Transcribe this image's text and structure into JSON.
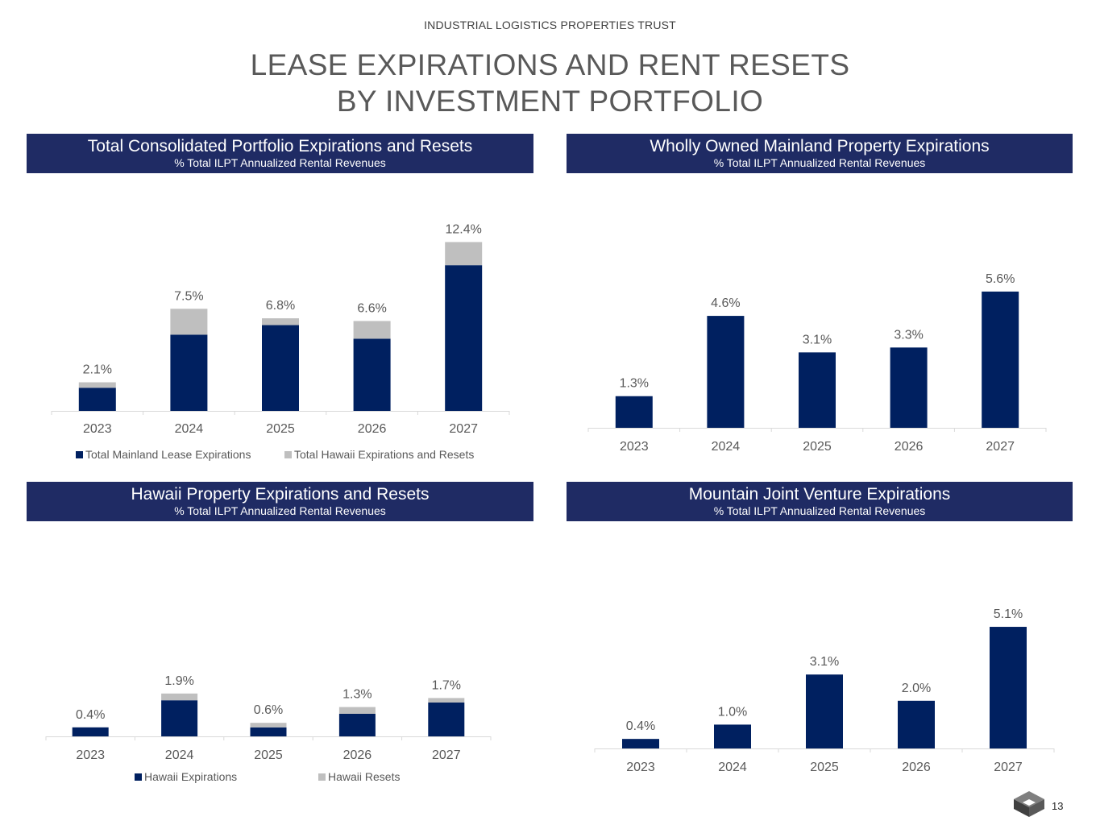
{
  "company": "INDUSTRIAL LOGISTICS PROPERTIES TRUST",
  "title_line1": "LEASE EXPIRATIONS AND RENT RESETS",
  "title_line2": "BY INVESTMENT PORTFOLIO",
  "page_number": "13",
  "colors": {
    "navy": "#002060",
    "gray": "#bfbfbf",
    "header": "#1f2b64"
  },
  "chart_data": [
    {
      "id": "consolidated",
      "type": "bar",
      "stacked": true,
      "title": "Total Consolidated Portfolio Expirations and Resets",
      "subtitle": "% Total ILPT Annualized Rental Revenues",
      "categories": [
        "2023",
        "2024",
        "2025",
        "2026",
        "2027"
      ],
      "series": [
        {
          "name": "Total Mainland Lease Expirations",
          "color": "#002060",
          "values": [
            1.7,
            5.6,
            6.3,
            5.3,
            10.7
          ]
        },
        {
          "name": "Total Hawaii Expirations and Resets",
          "color": "#bfbfbf",
          "values": [
            0.4,
            1.9,
            0.5,
            1.3,
            1.7
          ]
        }
      ],
      "data_labels": [
        "2.1%",
        "7.5%",
        "6.8%",
        "6.6%",
        "12.4%"
      ],
      "totals": [
        2.1,
        7.5,
        6.8,
        6.6,
        12.4
      ],
      "legend": "bottom"
    },
    {
      "id": "mainland",
      "type": "bar",
      "title": "Wholly Owned Mainland Property Expirations",
      "subtitle": "% Total ILPT Annualized Rental Revenues",
      "categories": [
        "2023",
        "2024",
        "2025",
        "2026",
        "2027"
      ],
      "values": [
        1.3,
        4.6,
        3.1,
        3.3,
        5.6
      ],
      "data_labels": [
        "1.3%",
        "4.6%",
        "3.1%",
        "3.3%",
        "5.6%"
      ],
      "color": "#002060"
    },
    {
      "id": "hawaii",
      "type": "bar",
      "stacked": true,
      "title": "Hawaii Property Expirations and Resets",
      "subtitle": "% Total ILPT Annualized Rental Revenues",
      "categories": [
        "2023",
        "2024",
        "2025",
        "2026",
        "2027"
      ],
      "series": [
        {
          "name": "Hawaii Expirations",
          "color": "#002060",
          "values": [
            0.4,
            1.6,
            0.4,
            1.0,
            1.5
          ]
        },
        {
          "name": "Hawaii Resets",
          "color": "#bfbfbf",
          "values": [
            0.0,
            0.3,
            0.2,
            0.3,
            0.2
          ]
        }
      ],
      "data_labels": [
        "0.4%",
        "1.9%",
        "0.6%",
        "1.3%",
        "1.7%"
      ],
      "totals": [
        0.4,
        1.9,
        0.6,
        1.3,
        1.7
      ],
      "legend": "bottom"
    },
    {
      "id": "mountain",
      "type": "bar",
      "title": "Mountain Joint Venture Expirations",
      "subtitle": "% Total ILPT Annualized Rental Revenues",
      "categories": [
        "2023",
        "2024",
        "2025",
        "2026",
        "2027"
      ],
      "values": [
        0.4,
        1.0,
        3.1,
        2.0,
        5.1
      ],
      "data_labels": [
        "0.4%",
        "1.0%",
        "3.1%",
        "2.0%",
        "5.1%"
      ],
      "color": "#002060"
    }
  ]
}
